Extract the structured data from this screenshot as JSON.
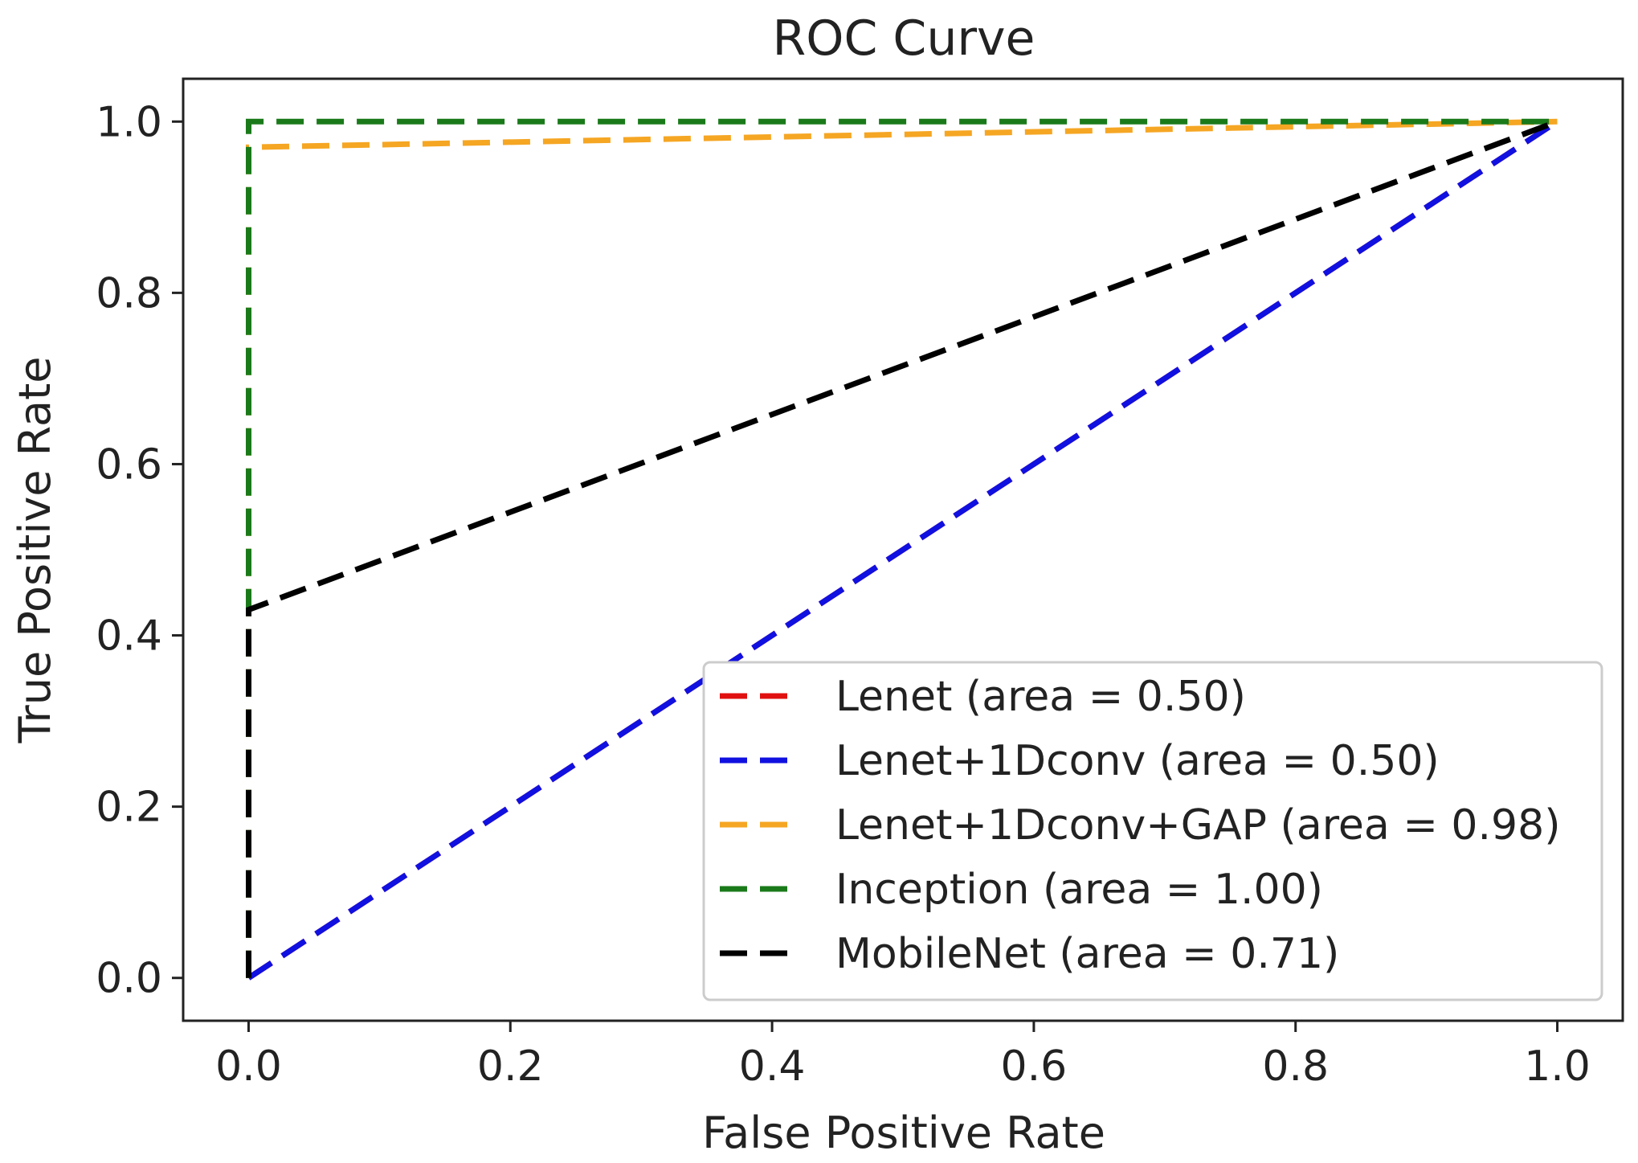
{
  "chart_data": {
    "type": "line",
    "title": "ROC Curve",
    "xlabel": "False Positive Rate",
    "ylabel": "True Positive Rate",
    "xlim": [
      -0.05,
      1.05
    ],
    "ylim": [
      -0.05,
      1.05
    ],
    "xticks": [
      "0.0",
      "0.2",
      "0.4",
      "0.6",
      "0.8",
      "1.0"
    ],
    "yticks": [
      "0.0",
      "0.2",
      "0.4",
      "0.6",
      "0.8",
      "1.0"
    ],
    "grid": false,
    "legend_position": "lower-right",
    "series": [
      {
        "name": "Lenet (area = 0.50)",
        "color": "#e01010",
        "dash": "dashed",
        "x": [
          0,
          1
        ],
        "y": [
          0,
          1
        ]
      },
      {
        "name": "Lenet+1Dconv (area = 0.50)",
        "color": "#1010e0",
        "dash": "dashed",
        "x": [
          0,
          1
        ],
        "y": [
          0,
          1
        ]
      },
      {
        "name": "Lenet+1Dconv+GAP (area = 0.98)",
        "color": "#f5a623",
        "dash": "dashed",
        "x": [
          0,
          0,
          1
        ],
        "y": [
          0,
          0.97,
          1
        ]
      },
      {
        "name": "Inception (area = 1.00)",
        "color": "#1a7a1a",
        "dash": "dashed",
        "x": [
          0,
          0,
          1
        ],
        "y": [
          0,
          1,
          1
        ]
      },
      {
        "name": "MobileNet (area = 0.71)",
        "color": "#000000",
        "dash": "dashed",
        "x": [
          0,
          0,
          1
        ],
        "y": [
          0,
          0.43,
          1
        ]
      }
    ]
  }
}
